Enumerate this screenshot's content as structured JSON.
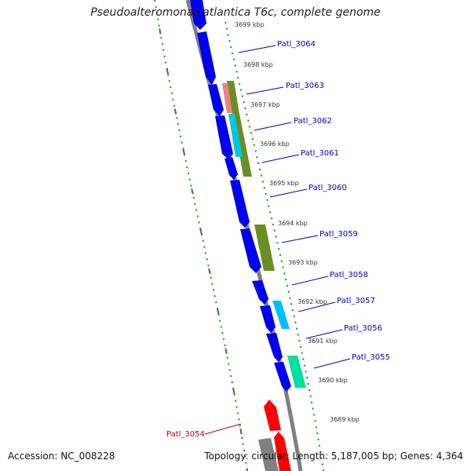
{
  "title": "Pseudoalteromonas atlantica T6c, complete genome",
  "accession": "Accession: NC_008228",
  "summary": "Topology: circular; Length: 5,187,005 bp; Genes: 4,364",
  "colors": {
    "forward_gene": "#0000ee",
    "reverse_gene": "#ff0000",
    "backbone": "#808080",
    "tick": "#228b22",
    "label_line_blue": "#0000cc",
    "label_line_red": "#cc0000",
    "go_olive": "#6b8e23",
    "go_pink": "#f08080",
    "go_cyan": "#00bfff",
    "go_teal": "#00e0a0"
  },
  "scale_labels": [
    "3699 kbp",
    "3698 kbp",
    "3697 kbp",
    "3696 kbp",
    "3695 kbp",
    "3694 kbp",
    "3693 kbp",
    "3692 kbp",
    "3691 kbp",
    "3690 kbp",
    "3689 kbp"
  ],
  "gene_labels": [
    "Patl_3064",
    "Patl_3063",
    "Patl_3062",
    "Patl_3061",
    "Patl_3060",
    "Patl_3059",
    "Patl_3058",
    "Patl_3057",
    "Patl_3056",
    "Patl_3055"
  ],
  "reverse_gene_label": "Patl_3054"
}
